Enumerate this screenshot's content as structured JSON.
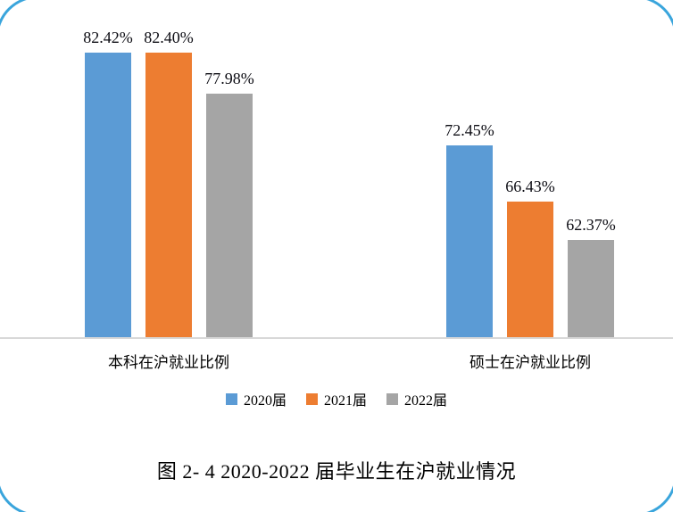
{
  "chart_data": {
    "type": "bar",
    "title": "",
    "categories": [
      "本科在沪就业比例",
      "硕士在沪就业比例"
    ],
    "series": [
      {
        "name": "2020届",
        "color": "#5B9BD5",
        "values": [
          82.42,
          72.45
        ]
      },
      {
        "name": "2021届",
        "color": "#ED7D31",
        "values": [
          82.4,
          66.43
        ]
      },
      {
        "name": "2022届",
        "color": "#A5A5A5",
        "values": [
          77.98,
          62.37
        ]
      }
    ],
    "data_labels": [
      [
        "82.42%",
        "82.40%",
        "77.98%"
      ],
      [
        "72.45%",
        "66.43%",
        "62.37%"
      ]
    ],
    "ylim": [
      52,
      84
    ],
    "grid": false,
    "axis_visible": false,
    "legend_position": "bottom"
  },
  "caption": "图 2- 4  2020-2022 届毕业生在沪就业情况",
  "colors": {
    "series_2020": "#5B9BD5",
    "series_2021": "#ED7D31",
    "series_2022": "#A5A5A5",
    "frame_border": "#3AA5DC",
    "baseline": "#D8D8D8"
  }
}
